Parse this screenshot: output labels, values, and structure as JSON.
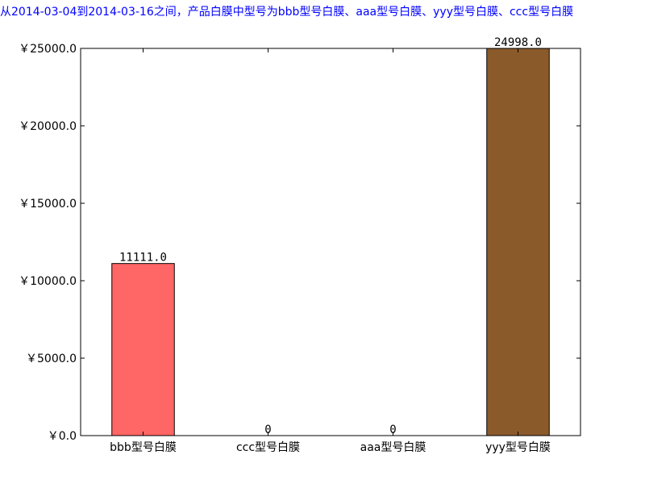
{
  "chart_data": {
    "type": "bar",
    "title": "从2014-03-04到2014-03-16之间，产品白膜中型号为bbb型号白膜、aaa型号白膜、yyy型号白膜、ccc型号白膜",
    "xlabel": "",
    "ylabel": "",
    "categories": [
      "bbb型号白膜",
      "ccc型号白膜",
      "aaa型号白膜",
      "yyy型号白膜"
    ],
    "values": [
      11111.0,
      0,
      0,
      24998.0
    ],
    "value_labels": [
      "11111.0",
      "0",
      "0",
      "24998.0"
    ],
    "bar_colors": [
      "#ff6666",
      "#ffffff",
      "#ffffff",
      "#8b5a2b"
    ],
    "ylim": [
      0,
      25000
    ],
    "yticks": [
      0,
      5000,
      10000,
      15000,
      20000,
      25000
    ],
    "ytick_labels": [
      "￥0.0",
      "￥5000.0",
      "￥10000.0",
      "￥15000.0",
      "￥20000.0",
      "￥25000.0"
    ],
    "grid": false,
    "legend": "none",
    "title_color": "#0000ff"
  }
}
